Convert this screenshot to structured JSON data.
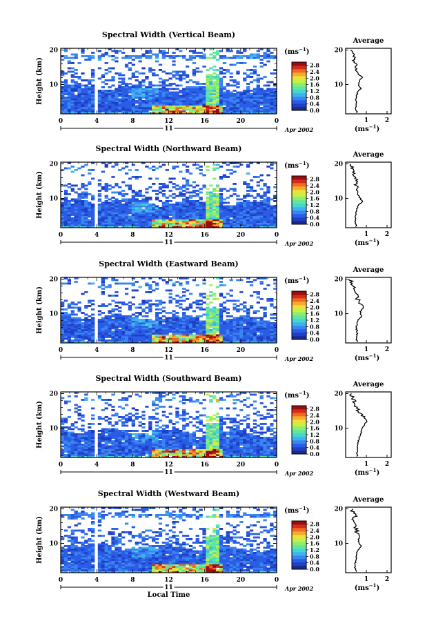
{
  "colors": {
    "palette": [
      "#1a2a8a",
      "#1f3fc4",
      "#2a5ce6",
      "#3a86f0",
      "#3fb2f2",
      "#46d6d0",
      "#5ee6a2",
      "#8eee6a",
      "#c4f04a",
      "#eee03a",
      "#f6aa2e",
      "#f06a22",
      "#d62a1a",
      "#9a0d10"
    ],
    "frame": "#000000"
  },
  "shared": {
    "date_label": "Apr 2002",
    "day_label": "11",
    "xlabel": "Local Time",
    "unit_label": "(ms",
    "unit_exp": "−1",
    "average_title": "Average",
    "avg_xlabel": "(ms",
    "ylabel": "Height (km)",
    "x_ticks": [
      "0",
      "4",
      "8",
      "12",
      "16",
      "20",
      "0"
    ],
    "y_ticks": [
      "20",
      "10"
    ],
    "colorbar_ticks": [
      "2.8",
      "2.4",
      "2.0",
      "1.6",
      "1.2",
      "0.8",
      "0.4",
      "0.0"
    ],
    "avg_x_ticks": [
      "1",
      "2"
    ]
  },
  "chart_data": [
    {
      "type": "heatmap",
      "title": "Spectral Width (Vertical Beam)",
      "xlabel": "",
      "ylabel": "Height (km)",
      "xlim": [
        0,
        24
      ],
      "ylim": [
        1.5,
        20.5
      ],
      "colorbar": {
        "label": "(ms−1)",
        "range": [
          0.0,
          3.0
        ],
        "ticks": [
          0.0,
          0.4,
          0.8,
          1.2,
          1.6,
          2.0,
          2.4,
          2.8
        ]
      },
      "average_profile": {
        "title": "Average",
        "xlabel": "(ms−1)",
        "xlim": [
          0,
          2.2
        ],
        "heights": [
          2,
          3,
          4,
          5,
          6,
          7,
          8,
          9,
          10,
          11,
          12,
          13,
          14,
          15,
          16,
          17,
          18,
          19,
          20
        ],
        "values": [
          0.55,
          0.5,
          0.5,
          0.5,
          0.5,
          0.55,
          0.6,
          0.75,
          0.6,
          0.65,
          0.8,
          0.65,
          0.55,
          0.5,
          0.45,
          0.4,
          0.45,
          0.35,
          0.25
        ]
      }
    },
    {
      "type": "heatmap",
      "title": "Spectral Width (Northward Beam)",
      "xlabel": "",
      "ylabel": "Height (km)",
      "xlim": [
        0,
        24
      ],
      "ylim": [
        1.5,
        20.5
      ],
      "colorbar": {
        "label": "(ms−1)",
        "range": [
          0.0,
          3.0
        ],
        "ticks": [
          0.0,
          0.4,
          0.8,
          1.2,
          1.6,
          2.0,
          2.4,
          2.8
        ]
      },
      "average_profile": {
        "title": "Average",
        "xlabel": "(ms−1)",
        "xlim": [
          0,
          2.2
        ],
        "heights": [
          2,
          3,
          4,
          5,
          6,
          7,
          8,
          9,
          10,
          11,
          12,
          13,
          14,
          15,
          16,
          17,
          18,
          19,
          20
        ],
        "values": [
          0.5,
          0.45,
          0.45,
          0.5,
          0.5,
          0.55,
          0.6,
          0.8,
          0.7,
          0.6,
          0.55,
          0.55,
          0.5,
          0.55,
          0.45,
          0.4,
          0.3,
          0.35,
          0.25
        ]
      }
    },
    {
      "type": "heatmap",
      "title": "Spectral Width (Eastward Beam)",
      "xlabel": "",
      "ylabel": "Height (km)",
      "xlim": [
        0,
        24
      ],
      "ylim": [
        1.5,
        20.5
      ],
      "colorbar": {
        "label": "(ms−1)",
        "range": [
          0.0,
          3.0
        ],
        "ticks": [
          0.0,
          0.4,
          0.8,
          1.2,
          1.6,
          2.0,
          2.4,
          2.8
        ]
      },
      "average_profile": {
        "title": "Average",
        "xlabel": "(ms−1)",
        "xlim": [
          0,
          2.2
        ],
        "heights": [
          2,
          3,
          4,
          5,
          6,
          7,
          8,
          9,
          10,
          11,
          12,
          13,
          14,
          15,
          16,
          17,
          18,
          19,
          20
        ],
        "values": [
          0.55,
          0.5,
          0.55,
          0.55,
          0.5,
          0.55,
          0.6,
          0.75,
          0.7,
          0.75,
          0.9,
          0.7,
          0.6,
          0.55,
          0.45,
          0.35,
          0.4,
          0.3,
          0.25
        ]
      }
    },
    {
      "type": "heatmap",
      "title": "Spectral Width (Southward Beam)",
      "xlabel": "",
      "ylabel": "Height (km)",
      "xlim": [
        0,
        24
      ],
      "ylim": [
        1.5,
        20.5
      ],
      "colorbar": {
        "label": "(ms−1)",
        "range": [
          0.0,
          3.0
        ],
        "ticks": [
          0.0,
          0.4,
          0.8,
          1.2,
          1.6,
          2.0,
          2.4,
          2.8
        ]
      },
      "average_profile": {
        "title": "Average",
        "xlabel": "(ms−1)",
        "xlim": [
          0,
          2.2
        ],
        "heights": [
          2,
          3,
          4,
          5,
          6,
          7,
          8,
          9,
          10,
          11,
          12,
          13,
          14,
          15,
          16,
          17,
          18,
          19,
          20
        ],
        "values": [
          0.55,
          0.55,
          0.55,
          0.6,
          0.6,
          0.65,
          0.7,
          0.75,
          0.8,
          0.9,
          1.05,
          0.9,
          0.75,
          0.6,
          0.5,
          0.45,
          0.4,
          0.3,
          0.25
        ]
      }
    },
    {
      "type": "heatmap",
      "title": "Spectral Width (Westward Beam)",
      "xlabel": "Local Time",
      "ylabel": "Height (km)",
      "xlim": [
        0,
        24
      ],
      "ylim": [
        1.5,
        20.5
      ],
      "colorbar": {
        "label": "(ms−1)",
        "range": [
          0.0,
          3.0
        ],
        "ticks": [
          0.0,
          0.4,
          0.8,
          1.2,
          1.6,
          2.0,
          2.4,
          2.8
        ]
      },
      "average_profile": {
        "title": "Average",
        "xlabel": "(ms−1)",
        "xlim": [
          0,
          2.2
        ],
        "heights": [
          2,
          3,
          4,
          5,
          6,
          7,
          8,
          9,
          10,
          11,
          12,
          13,
          14,
          15,
          16,
          17,
          18,
          19,
          20
        ],
        "values": [
          0.5,
          0.45,
          0.45,
          0.5,
          0.5,
          0.55,
          0.6,
          0.75,
          0.65,
          0.6,
          0.7,
          0.6,
          0.5,
          0.45,
          0.4,
          0.4,
          0.45,
          0.35,
          0.3
        ]
      }
    }
  ]
}
